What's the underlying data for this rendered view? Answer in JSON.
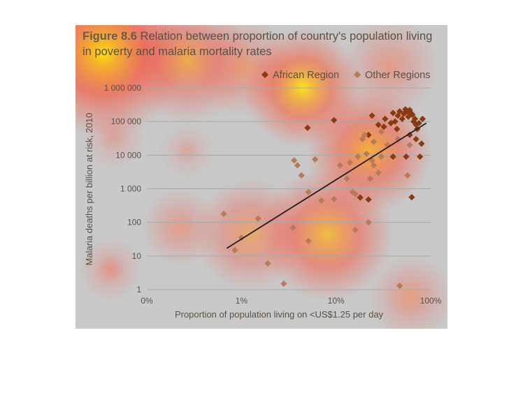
{
  "figure": {
    "number": "Figure 8.6",
    "title": "Relation between proportion of country's population living in poverty and malaria mortality rates"
  },
  "chart_data": {
    "type": "scatter",
    "xlabel": "Proportion of population living on <US$1.25 per day",
    "ylabel": "Malaria deaths per billion at risk, 2010",
    "x_scale": "log",
    "y_scale": "log",
    "x_ticks": [
      "0%",
      "1%",
      "10%",
      "100%"
    ],
    "y_ticks": [
      "1",
      "10",
      "100",
      "1 000",
      "10 000",
      "100 000",
      "1 000 000"
    ],
    "xlim": [
      0.1,
      100
    ],
    "ylim": [
      1,
      1000000
    ],
    "grid": true,
    "legend": "top-right",
    "series": [
      {
        "name": "African Region",
        "color": "#8a3a10",
        "points": [
          [
            5,
            65000
          ],
          [
            9.5,
            110000
          ],
          [
            24,
            150000
          ],
          [
            28,
            80000
          ],
          [
            32,
            70000
          ],
          [
            33,
            120000
          ],
          [
            38,
            90000
          ],
          [
            40,
            180000
          ],
          [
            42,
            100000
          ],
          [
            45,
            150000
          ],
          [
            47,
            200000
          ],
          [
            50,
            120000
          ],
          [
            52,
            170000
          ],
          [
            54,
            230000
          ],
          [
            56,
            200000
          ],
          [
            58,
            140000
          ],
          [
            60,
            220000
          ],
          [
            62,
            180000
          ],
          [
            64,
            160000
          ],
          [
            66,
            100000
          ],
          [
            68,
            120000
          ],
          [
            70,
            80000
          ],
          [
            72,
            60000
          ],
          [
            75,
            90000
          ],
          [
            82,
            120000
          ],
          [
            80,
            22000
          ],
          [
            77,
            9000
          ],
          [
            55,
            9000
          ],
          [
            40,
            9000
          ],
          [
            44,
            60000
          ],
          [
            60,
            40000
          ],
          [
            22,
            40000
          ],
          [
            18,
            550
          ],
          [
            22,
            480
          ],
          [
            63,
            560
          ],
          [
            70,
            30000
          ]
        ]
      },
      {
        "name": "Other Regions",
        "color": "#b87a58",
        "points": [
          [
            0.65,
            180
          ],
          [
            0.85,
            15
          ],
          [
            1.0,
            35
          ],
          [
            1.5,
            130
          ],
          [
            1.9,
            6
          ],
          [
            2.8,
            1.5
          ],
          [
            3.5,
            70
          ],
          [
            3.6,
            7000
          ],
          [
            3.9,
            5000
          ],
          [
            4.3,
            2500
          ],
          [
            5.1,
            800
          ],
          [
            5.1,
            28
          ],
          [
            6,
            7500
          ],
          [
            7,
            450
          ],
          [
            9.5,
            500
          ],
          [
            11,
            5000
          ],
          [
            13,
            2000
          ],
          [
            14,
            6000
          ],
          [
            15,
            800
          ],
          [
            16,
            60
          ],
          [
            17,
            9000
          ],
          [
            19,
            30000
          ],
          [
            20,
            40000
          ],
          [
            21,
            11000
          ],
          [
            22,
            100
          ],
          [
            23,
            2000
          ],
          [
            24,
            7000
          ],
          [
            25,
            25000
          ],
          [
            28,
            3000
          ],
          [
            30,
            50000
          ],
          [
            35,
            20000
          ],
          [
            45,
            30000
          ],
          [
            47,
            1.3
          ],
          [
            57,
            2500
          ],
          [
            60,
            20000
          ],
          [
            25,
            5000
          ],
          [
            16,
            700
          ],
          [
            30,
            9000
          ]
        ]
      }
    ],
    "trendline": {
      "color": "#1e1e1e",
      "points": [
        [
          0.7,
          17
        ],
        [
          90,
          90000
        ]
      ]
    }
  }
}
